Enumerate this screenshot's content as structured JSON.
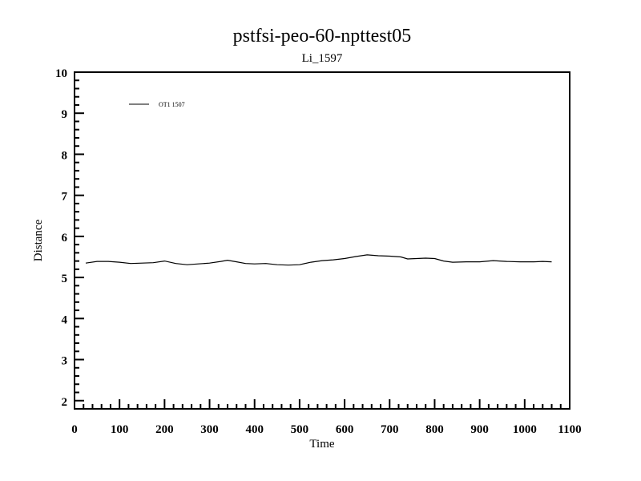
{
  "chart_data": {
    "type": "line",
    "title": "pstfsi-peo-60-npttest05",
    "subtitle": "Li_1597",
    "xlabel": "Time",
    "ylabel": "Distance",
    "xlim": [
      0,
      1100
    ],
    "ylim": [
      1.8,
      10
    ],
    "xticks": [
      0,
      100,
      200,
      300,
      400,
      500,
      600,
      700,
      800,
      900,
      1000,
      1100
    ],
    "yticks": [
      2,
      3,
      4,
      5,
      6,
      7,
      8,
      9,
      10
    ],
    "grid": false,
    "legend_position": "top-left",
    "series": [
      {
        "name": "OT1 1507",
        "color": "#000000",
        "x": [
          25,
          50,
          75,
          100,
          125,
          150,
          175,
          200,
          225,
          250,
          275,
          300,
          325,
          340,
          360,
          380,
          400,
          425,
          450,
          475,
          500,
          525,
          550,
          575,
          600,
          625,
          650,
          675,
          700,
          725,
          740,
          760,
          780,
          800,
          820,
          840,
          870,
          900,
          930,
          960,
          990,
          1020,
          1040,
          1060
        ],
        "y": [
          5.35,
          5.39,
          5.39,
          5.37,
          5.34,
          5.35,
          5.36,
          5.4,
          5.34,
          5.31,
          5.33,
          5.35,
          5.39,
          5.42,
          5.38,
          5.34,
          5.33,
          5.34,
          5.31,
          5.3,
          5.31,
          5.37,
          5.41,
          5.43,
          5.46,
          5.51,
          5.55,
          5.53,
          5.52,
          5.5,
          5.45,
          5.46,
          5.47,
          5.46,
          5.4,
          5.37,
          5.38,
          5.38,
          5.41,
          5.39,
          5.38,
          5.38,
          5.39,
          5.38
        ]
      }
    ]
  }
}
